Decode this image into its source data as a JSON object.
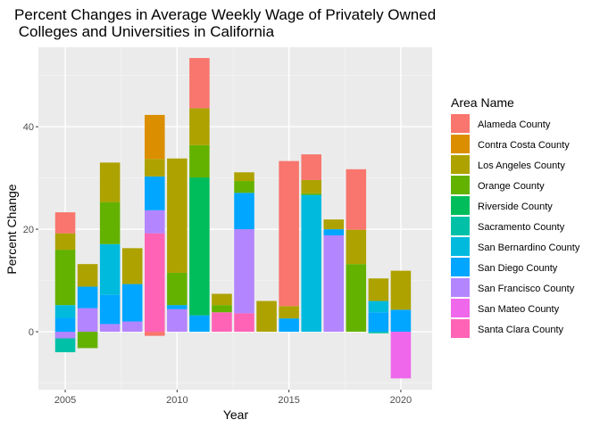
{
  "chart_data": {
    "type": "bar",
    "stacked": true,
    "title_line1": "Percent Changes in Average Weekly Wage of Privately Owned",
    "title_line2": " Colleges and Universities in California",
    "xlabel": "Year",
    "ylabel": "Percent Change",
    "xlim": [
      2003.8,
      2021.4
    ],
    "ylim": [
      -11.3,
      55.5
    ],
    "x_ticks": [
      2005,
      2010,
      2015,
      2020
    ],
    "y_ticks": [
      0,
      20,
      40
    ],
    "y_minor_ticks": [
      -10,
      10,
      30,
      50
    ],
    "grid": true,
    "legend_position": "right",
    "legend_title": "Area Name",
    "series": [
      {
        "name": "Alameda County",
        "color": "#F8766D"
      },
      {
        "name": "Contra Costa County",
        "color": "#DB8E00"
      },
      {
        "name": "Los Angeles County",
        "color": "#AEA200"
      },
      {
        "name": "Orange County",
        "color": "#64B200"
      },
      {
        "name": "Riverside County",
        "color": "#00BD5C"
      },
      {
        "name": "Sacramento County",
        "color": "#00C1A7"
      },
      {
        "name": "San Bernardino County",
        "color": "#00BADE"
      },
      {
        "name": "San Diego County",
        "color": "#00A6FF"
      },
      {
        "name": "San Francisco County",
        "color": "#B385FF"
      },
      {
        "name": "San Mateo County",
        "color": "#EF67EB"
      },
      {
        "name": "Santa Clara County",
        "color": "#FF63B6"
      }
    ],
    "segments": [
      {
        "year": 2005,
        "series": "Sacramento County",
        "start": 0,
        "end": -4
      },
      {
        "year": 2005,
        "series": "San Francisco County",
        "start": 0,
        "end": -1.3
      },
      {
        "year": 2005,
        "series": "San Diego County",
        "start": 0,
        "end": 2.7
      },
      {
        "year": 2005,
        "series": "San Bernardino County",
        "start": 2.7,
        "end": 5.2
      },
      {
        "year": 2005,
        "series": "Orange County",
        "start": 5.2,
        "end": 16
      },
      {
        "year": 2005,
        "series": "Los Angeles County",
        "start": 16,
        "end": 19.2
      },
      {
        "year": 2005,
        "series": "Alameda County",
        "start": 19.2,
        "end": 23.3
      },
      {
        "year": 2006,
        "series": "Orange County",
        "start": 0,
        "end": -3.2
      },
      {
        "year": 2006,
        "series": "San Francisco County",
        "start": 0,
        "end": 4.6
      },
      {
        "year": 2006,
        "series": "San Diego County",
        "start": 4.6,
        "end": 8.8
      },
      {
        "year": 2006,
        "series": "Los Angeles County",
        "start": 8.8,
        "end": 13.2
      },
      {
        "year": 2007,
        "series": "San Francisco County",
        "start": 0,
        "end": 1.5
      },
      {
        "year": 2007,
        "series": "San Diego County",
        "start": 1.5,
        "end": 7.2
      },
      {
        "year": 2007,
        "series": "San Bernardino County",
        "start": 7.2,
        "end": 17.1
      },
      {
        "year": 2007,
        "series": "Orange County",
        "start": 17.1,
        "end": 25.3
      },
      {
        "year": 2007,
        "series": "Los Angeles County",
        "start": 25.3,
        "end": 33
      },
      {
        "year": 2008,
        "series": "San Francisco County",
        "start": 0,
        "end": 2
      },
      {
        "year": 2008,
        "series": "San Diego County",
        "start": 2,
        "end": 9.3
      },
      {
        "year": 2008,
        "series": "Los Angeles County",
        "start": 9.3,
        "end": 16.3
      },
      {
        "year": 2009,
        "series": "Alameda County",
        "start": 0,
        "end": -0.8
      },
      {
        "year": 2009,
        "series": "Santa Clara County",
        "start": 0,
        "end": 19.2
      },
      {
        "year": 2009,
        "series": "San Francisco County",
        "start": 19.2,
        "end": 23.7
      },
      {
        "year": 2009,
        "series": "San Diego County",
        "start": 23.7,
        "end": 30.3
      },
      {
        "year": 2009,
        "series": "Los Angeles County",
        "start": 30.3,
        "end": 33.7
      },
      {
        "year": 2009,
        "series": "Contra Costa County",
        "start": 33.7,
        "end": 42.3
      },
      {
        "year": 2010,
        "series": "San Francisco County",
        "start": 0,
        "end": 4.4
      },
      {
        "year": 2010,
        "series": "San Diego County",
        "start": 4.4,
        "end": 5.2
      },
      {
        "year": 2010,
        "series": "Orange County",
        "start": 5.2,
        "end": 11.5
      },
      {
        "year": 2010,
        "series": "Los Angeles County",
        "start": 11.5,
        "end": 33.8
      },
      {
        "year": 2011,
        "series": "San Diego County",
        "start": 0,
        "end": 3.2
      },
      {
        "year": 2011,
        "series": "Riverside County",
        "start": 3.2,
        "end": 30.1
      },
      {
        "year": 2011,
        "series": "Orange County",
        "start": 30.1,
        "end": 36.4
      },
      {
        "year": 2011,
        "series": "Los Angeles County",
        "start": 36.4,
        "end": 43.6
      },
      {
        "year": 2011,
        "series": "Alameda County",
        "start": 43.6,
        "end": 53.4
      },
      {
        "year": 2012,
        "series": "Santa Clara County",
        "start": 0,
        "end": 3.8
      },
      {
        "year": 2012,
        "series": "Orange County",
        "start": 3.8,
        "end": 5.2
      },
      {
        "year": 2012,
        "series": "Los Angeles County",
        "start": 5.2,
        "end": 7.4
      },
      {
        "year": 2013,
        "series": "Santa Clara County",
        "start": 0,
        "end": 3.6
      },
      {
        "year": 2013,
        "series": "San Francisco County",
        "start": 3.6,
        "end": 20
      },
      {
        "year": 2013,
        "series": "San Diego County",
        "start": 20,
        "end": 27.1
      },
      {
        "year": 2013,
        "series": "Orange County",
        "start": 27.1,
        "end": 29.4
      },
      {
        "year": 2013,
        "series": "Los Angeles County",
        "start": 29.4,
        "end": 31.1
      },
      {
        "year": 2014,
        "series": "Los Angeles County",
        "start": 0,
        "end": 6
      },
      {
        "year": 2015,
        "series": "San Diego County",
        "start": 0,
        "end": 2.6
      },
      {
        "year": 2015,
        "series": "Los Angeles County",
        "start": 2.6,
        "end": 5
      },
      {
        "year": 2015,
        "series": "Alameda County",
        "start": 5,
        "end": 33.3
      },
      {
        "year": 2016,
        "series": "San Bernardino County",
        "start": 0,
        "end": 26.7
      },
      {
        "year": 2016,
        "series": "Orange County",
        "start": 26.7,
        "end": 27
      },
      {
        "year": 2016,
        "series": "Los Angeles County",
        "start": 27,
        "end": 29.6
      },
      {
        "year": 2016,
        "series": "Alameda County",
        "start": 29.6,
        "end": 34.6
      },
      {
        "year": 2017,
        "series": "San Francisco County",
        "start": 0,
        "end": 18.8
      },
      {
        "year": 2017,
        "series": "San Diego County",
        "start": 18.8,
        "end": 20
      },
      {
        "year": 2017,
        "series": "Los Angeles County",
        "start": 20,
        "end": 21.9
      },
      {
        "year": 2018,
        "series": "Orange County",
        "start": 0,
        "end": 13.2
      },
      {
        "year": 2018,
        "series": "Los Angeles County",
        "start": 13.2,
        "end": 19.9
      },
      {
        "year": 2018,
        "series": "Alameda County",
        "start": 19.9,
        "end": 31.7
      },
      {
        "year": 2019,
        "series": "Sacramento County",
        "start": 0,
        "end": -0.3
      },
      {
        "year": 2019,
        "series": "San Diego County",
        "start": 0,
        "end": 3.8
      },
      {
        "year": 2019,
        "series": "San Bernardino County",
        "start": 3.8,
        "end": 6
      },
      {
        "year": 2019,
        "series": "Los Angeles County",
        "start": 6,
        "end": 10.4
      },
      {
        "year": 2020,
        "series": "San Mateo County",
        "start": 0,
        "end": -9.1
      },
      {
        "year": 2020,
        "series": "San Diego County",
        "start": 0,
        "end": 4.3
      },
      {
        "year": 2020,
        "series": "Los Angeles County",
        "start": 4.3,
        "end": 11.9
      }
    ]
  }
}
